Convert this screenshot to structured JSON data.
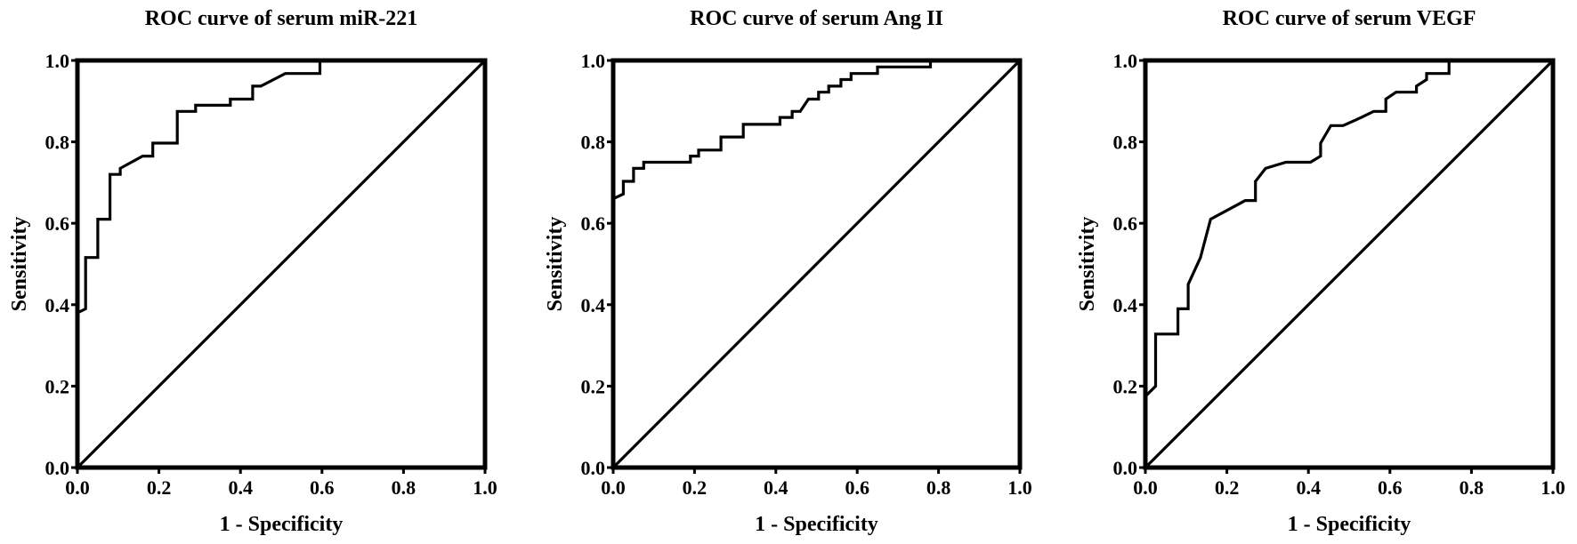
{
  "chart_data": [
    {
      "type": "line",
      "title": "ROC curve of serum miR-221",
      "xlabel": "1 - Specificity",
      "ylabel": "Sensitivity",
      "xlim": [
        0,
        1
      ],
      "ylim": [
        0,
        1
      ],
      "xticks": [
        "0.0",
        "0.2",
        "0.4",
        "0.6",
        "0.8",
        "1.0"
      ],
      "yticks": [
        "0.0",
        "0.2",
        "0.4",
        "0.6",
        "0.8",
        "1.0"
      ],
      "grid": false,
      "reference_line": [
        [
          0,
          0
        ],
        [
          1,
          1
        ]
      ],
      "series": [
        {
          "points": [
            [
              0.0,
              0.38
            ],
            [
              0.02,
              0.39
            ],
            [
              0.02,
              0.516
            ],
            [
              0.05,
              0.516
            ],
            [
              0.05,
              0.61
            ],
            [
              0.08,
              0.61
            ],
            [
              0.08,
              0.72
            ],
            [
              0.105,
              0.72
            ],
            [
              0.105,
              0.735
            ],
            [
              0.16,
              0.765
            ],
            [
              0.185,
              0.765
            ],
            [
              0.185,
              0.797
            ],
            [
              0.245,
              0.797
            ],
            [
              0.245,
              0.875
            ],
            [
              0.29,
              0.875
            ],
            [
              0.29,
              0.89
            ],
            [
              0.375,
              0.89
            ],
            [
              0.375,
              0.905
            ],
            [
              0.43,
              0.905
            ],
            [
              0.43,
              0.937
            ],
            [
              0.45,
              0.937
            ],
            [
              0.51,
              0.968
            ],
            [
              0.595,
              0.968
            ],
            [
              0.595,
              1.0
            ]
          ]
        }
      ]
    },
    {
      "type": "line",
      "title": "ROC curve of serum Ang II",
      "xlabel": "1 - Specificity",
      "ylabel": "Sensitivity",
      "xlim": [
        0,
        1
      ],
      "ylim": [
        0,
        1
      ],
      "xticks": [
        "0.0",
        "0.2",
        "0.4",
        "0.6",
        "0.8",
        "1.0"
      ],
      "yticks": [
        "0.0",
        "0.2",
        "0.4",
        "0.6",
        "0.8",
        "1.0"
      ],
      "grid": false,
      "reference_line": [
        [
          0,
          0
        ],
        [
          1,
          1
        ]
      ],
      "series": [
        {
          "points": [
            [
              0.0,
              0.66
            ],
            [
              0.025,
              0.672
            ],
            [
              0.025,
              0.703
            ],
            [
              0.05,
              0.703
            ],
            [
              0.05,
              0.735
            ],
            [
              0.075,
              0.735
            ],
            [
              0.075,
              0.75
            ],
            [
              0.19,
              0.75
            ],
            [
              0.19,
              0.765
            ],
            [
              0.21,
              0.765
            ],
            [
              0.21,
              0.78
            ],
            [
              0.265,
              0.78
            ],
            [
              0.265,
              0.812
            ],
            [
              0.32,
              0.812
            ],
            [
              0.32,
              0.843
            ],
            [
              0.41,
              0.843
            ],
            [
              0.41,
              0.86
            ],
            [
              0.44,
              0.86
            ],
            [
              0.44,
              0.875
            ],
            [
              0.46,
              0.875
            ],
            [
              0.48,
              0.905
            ],
            [
              0.505,
              0.905
            ],
            [
              0.505,
              0.922
            ],
            [
              0.53,
              0.922
            ],
            [
              0.53,
              0.937
            ],
            [
              0.56,
              0.937
            ],
            [
              0.56,
              0.953
            ],
            [
              0.585,
              0.953
            ],
            [
              0.585,
              0.968
            ],
            [
              0.65,
              0.968
            ],
            [
              0.65,
              0.984
            ],
            [
              0.78,
              0.984
            ],
            [
              0.78,
              1.0
            ]
          ]
        }
      ]
    },
    {
      "type": "line",
      "title": "ROC curve of serum VEGF",
      "xlabel": "1 - Specificity",
      "ylabel": "Sensitivity",
      "xlim": [
        0,
        1
      ],
      "ylim": [
        0,
        1
      ],
      "xticks": [
        "0.0",
        "0.2",
        "0.4",
        "0.6",
        "0.8",
        "1.0"
      ],
      "yticks": [
        "0.0",
        "0.2",
        "0.4",
        "0.6",
        "0.8",
        "1.0"
      ],
      "grid": false,
      "reference_line": [
        [
          0,
          0
        ],
        [
          1,
          1
        ]
      ],
      "series": [
        {
          "points": [
            [
              0.0,
              0.175
            ],
            [
              0.025,
              0.2
            ],
            [
              0.025,
              0.328
            ],
            [
              0.08,
              0.328
            ],
            [
              0.08,
              0.39
            ],
            [
              0.105,
              0.39
            ],
            [
              0.105,
              0.45
            ],
            [
              0.135,
              0.515
            ],
            [
              0.16,
              0.61
            ],
            [
              0.245,
              0.656
            ],
            [
              0.27,
              0.656
            ],
            [
              0.27,
              0.703
            ],
            [
              0.295,
              0.735
            ],
            [
              0.345,
              0.75
            ],
            [
              0.405,
              0.75
            ],
            [
              0.43,
              0.765
            ],
            [
              0.43,
              0.797
            ],
            [
              0.455,
              0.84
            ],
            [
              0.485,
              0.84
            ],
            [
              0.53,
              0.86
            ],
            [
              0.56,
              0.875
            ],
            [
              0.59,
              0.875
            ],
            [
              0.59,
              0.905
            ],
            [
              0.615,
              0.922
            ],
            [
              0.665,
              0.922
            ],
            [
              0.665,
              0.937
            ],
            [
              0.69,
              0.953
            ],
            [
              0.69,
              0.968
            ],
            [
              0.745,
              0.968
            ],
            [
              0.745,
              1.0
            ]
          ]
        }
      ]
    }
  ]
}
